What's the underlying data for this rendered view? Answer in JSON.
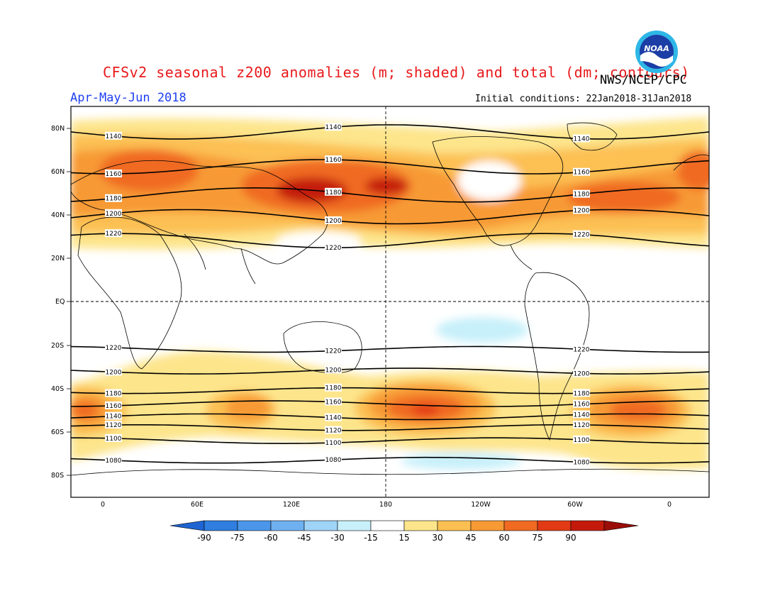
{
  "header": {
    "title": "CFSv2 seasonal z200 anomalies (m; shaded) and total (dm; contours)",
    "agency": "NWS/NCEP/CPC",
    "season": "Apr-May-Jun 2018",
    "initial_conditions": "Initial conditions: 22Jan2018-31Jan2018",
    "logo_text": "NOAA"
  },
  "axes": {
    "lat_labels": [
      "80N",
      "60N",
      "40N",
      "20N",
      "EQ",
      "20S",
      "40S",
      "60S",
      "80S"
    ],
    "lon_labels": [
      "0",
      "60E",
      "120E",
      "180",
      "120W",
      "60W",
      "0"
    ]
  },
  "contours": [
    {
      "value": "1140",
      "lat": 78
    },
    {
      "value": "1160",
      "lat": 62
    },
    {
      "value": "1180",
      "lat": 49
    },
    {
      "value": "1200",
      "lat": 39
    },
    {
      "value": "1220",
      "lat": 28
    },
    {
      "value": "1220",
      "lat": -22
    },
    {
      "value": "1200",
      "lat": -32
    },
    {
      "value": "1180",
      "lat": -41
    },
    {
      "value": "1160",
      "lat": -47
    },
    {
      "value": "1140",
      "lat": -53
    },
    {
      "value": "1120",
      "lat": -58
    },
    {
      "value": "1100",
      "lat": -64
    },
    {
      "value": "1080",
      "lat": -73
    }
  ],
  "colorbar": {
    "labels": [
      "-90",
      "-75",
      "-60",
      "-45",
      "-30",
      "-15",
      "15",
      "30",
      "45",
      "60",
      "75",
      "90"
    ],
    "colors": [
      "#1e64d2",
      "#2f7ee0",
      "#4b96ea",
      "#6fb0f0",
      "#9fd4f8",
      "#c7f0fa",
      "#ffffff",
      "#fde58c",
      "#fcc052",
      "#f79a34",
      "#f06a22",
      "#e23a15",
      "#c41a0c",
      "#9b0d08"
    ]
  },
  "chart_data": {
    "type": "heatmap",
    "variable": "z200 anomalies (m; shaded) and total (dm; contours)",
    "period": "Apr-May-Jun 2018",
    "color_levels": [
      -90,
      -75,
      -60,
      -45,
      -30,
      -15,
      15,
      30,
      45,
      60,
      75,
      90
    ],
    "contour_values_dm": [
      1080,
      1100,
      1120,
      1140,
      1160,
      1180,
      1200,
      1220
    ]
  }
}
